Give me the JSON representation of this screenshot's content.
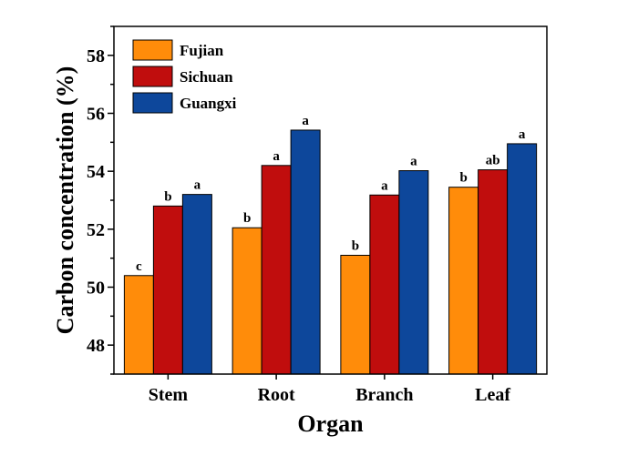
{
  "chart_data": {
    "type": "bar",
    "title": "",
    "xlabel": "Organ",
    "ylabel": "Carbon concentration (%)",
    "ylim": [
      47,
      59
    ],
    "yticks": [
      48,
      50,
      52,
      54,
      56,
      58
    ],
    "categories": [
      "Stem",
      "Root",
      "Branch",
      "Leaf"
    ],
    "series": [
      {
        "name": "Fujian",
        "color": "#ff8c0a",
        "values": [
          50.4,
          52.05,
          51.1,
          53.45
        ],
        "labels": [
          "c",
          "b",
          "b",
          "b"
        ]
      },
      {
        "name": "Sichuan",
        "color": "#c00d0d",
        "values": [
          52.8,
          54.2,
          53.18,
          54.05
        ],
        "labels": [
          "b",
          "a",
          "a",
          "ab"
        ]
      },
      {
        "name": "Guangxi",
        "color": "#0d479b",
        "values": [
          53.2,
          55.42,
          54.02,
          54.95
        ],
        "labels": [
          "a",
          "a",
          "a",
          "a"
        ]
      }
    ],
    "legend": "top-left",
    "grid": false
  }
}
